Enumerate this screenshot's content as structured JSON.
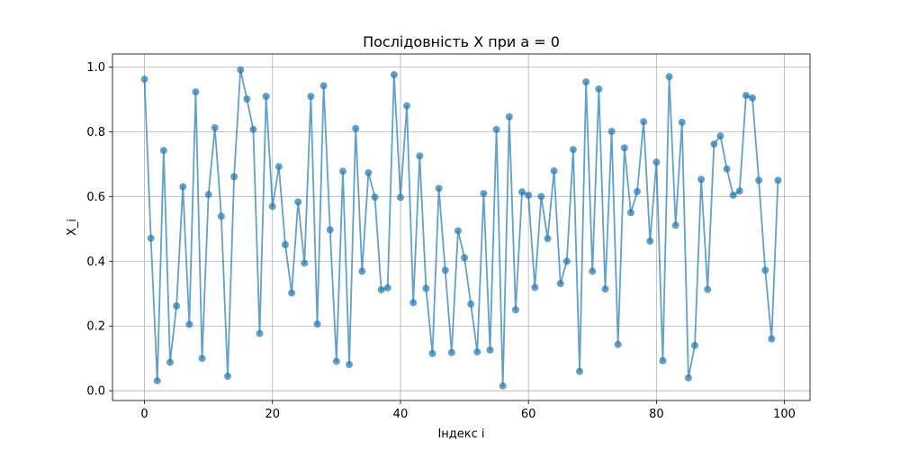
{
  "chart_data": {
    "type": "line",
    "title": "Послідовність X при a = 0",
    "xlabel": "Індекс i",
    "ylabel": "X_i",
    "xlim": [
      -5,
      104
    ],
    "ylim": [
      -0.03,
      1.04
    ],
    "x_ticks": [
      0,
      20,
      40,
      60,
      80,
      100
    ],
    "y_ticks": [
      0.0,
      0.2,
      0.4,
      0.6,
      0.8,
      1.0
    ],
    "x_tick_labels": [
      "0",
      "20",
      "40",
      "60",
      "80",
      "100"
    ],
    "y_tick_labels": [
      "0.0",
      "0.2",
      "0.4",
      "0.6",
      "0.8",
      "1.0"
    ],
    "grid": true,
    "marker": "circle",
    "series": [
      {
        "color": "#1f77b4",
        "x": [
          0,
          1,
          2,
          3,
          4,
          5,
          6,
          7,
          8,
          9,
          10,
          11,
          12,
          13,
          14,
          15,
          16,
          17,
          18,
          19,
          20,
          21,
          22,
          23,
          24,
          25,
          26,
          27,
          28,
          29,
          30,
          31,
          32,
          33,
          34,
          35,
          36,
          37,
          38,
          39,
          40,
          41,
          42,
          43,
          44,
          45,
          46,
          47,
          48,
          49,
          50,
          51,
          52,
          53,
          54,
          55,
          56,
          57,
          58,
          59,
          60,
          61,
          62,
          63,
          64,
          65,
          66,
          67,
          68,
          69,
          70,
          71,
          72,
          73,
          74,
          75,
          76,
          77,
          78,
          79,
          80,
          81,
          82,
          83,
          84,
          85,
          86,
          87,
          88,
          89,
          90,
          91,
          92,
          93,
          94,
          95,
          96,
          97,
          98,
          99
        ],
        "values": [
          0.962,
          0.471,
          0.031,
          0.742,
          0.088,
          0.262,
          0.63,
          0.205,
          0.923,
          0.1,
          0.606,
          0.812,
          0.539,
          0.045,
          0.661,
          0.991,
          0.901,
          0.807,
          0.177,
          0.909,
          0.569,
          0.692,
          0.451,
          0.302,
          0.583,
          0.394,
          0.909,
          0.206,
          0.942,
          0.497,
          0.091,
          0.678,
          0.081,
          0.81,
          0.369,
          0.673,
          0.598,
          0.312,
          0.318,
          0.976,
          0.597,
          0.88,
          0.272,
          0.725,
          0.316,
          0.115,
          0.625,
          0.372,
          0.118,
          0.494,
          0.411,
          0.268,
          0.12,
          0.609,
          0.126,
          0.807,
          0.015,
          0.846,
          0.25,
          0.614,
          0.604,
          0.319,
          0.6,
          0.47,
          0.679,
          0.331,
          0.4,
          0.745,
          0.06,
          0.954,
          0.369,
          0.932,
          0.314,
          0.801,
          0.143,
          0.75,
          0.55,
          0.615,
          0.831,
          0.462,
          0.706,
          0.093,
          0.97,
          0.511,
          0.829,
          0.04,
          0.14,
          0.653,
          0.313,
          0.762,
          0.787,
          0.685,
          0.604,
          0.617,
          0.912,
          0.904,
          0.65,
          0.372,
          0.16,
          0.65
        ]
      }
    ]
  }
}
